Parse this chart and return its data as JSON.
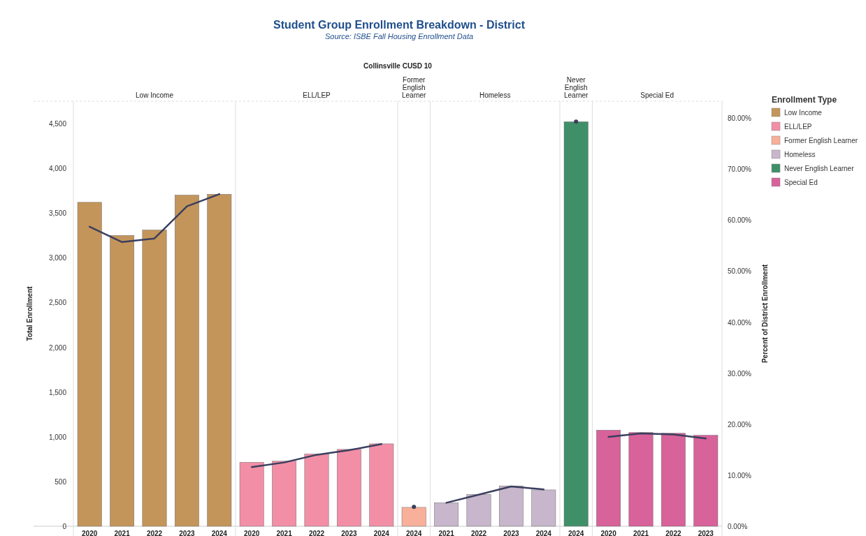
{
  "chart_data": {
    "type": "bar",
    "title": "Student Group Enrollment Breakdown - District",
    "subtitle": "Source: ISBE Fall Housing Enrollment Data",
    "annotations": [
      "Collinsville CUSD 10"
    ],
    "ylabel": "Total Enrollment",
    "y2label": "Percent of District Enrollment",
    "legend_title": "Enrollment Type",
    "legend": "right",
    "categories": [
      "2020",
      "2021",
      "2022",
      "2023",
      "2024",
      "2020",
      "2021",
      "2022",
      "2023",
      "2024",
      "2024",
      "2021",
      "2022",
      "2023",
      "2024",
      "2024",
      "2020",
      "2021",
      "2022",
      "2023"
    ],
    "ylim": [
      0,
      4750
    ],
    "yticks": [
      {
        "value": 0,
        "label": "0"
      },
      {
        "value": 500,
        "label": "500"
      },
      {
        "value": 1000,
        "label": "1,000"
      },
      {
        "value": 1500,
        "label": "1,500"
      },
      {
        "value": 2000,
        "label": "2,000"
      },
      {
        "value": 2500,
        "label": "2,500"
      },
      {
        "value": 3000,
        "label": "3,000"
      },
      {
        "value": 3500,
        "label": "3,500"
      },
      {
        "value": 4000,
        "label": "4,000"
      },
      {
        "value": 4500,
        "label": "4,500"
      }
    ],
    "y2lim": [
      0,
      83.3
    ],
    "y2ticks": [
      {
        "value": 0,
        "label": "0.00%"
      },
      {
        "value": 10,
        "label": "10.00%"
      },
      {
        "value": 20,
        "label": "20.00%"
      },
      {
        "value": 30,
        "label": "30.00%"
      },
      {
        "value": 40,
        "label": "40.00%"
      },
      {
        "value": 50,
        "label": "50.00%"
      },
      {
        "value": 60,
        "label": "60.00%"
      },
      {
        "value": 70,
        "label": "70.00%"
      },
      {
        "value": 80,
        "label": "80.00%"
      }
    ],
    "series": [
      {
        "name": "Low Income",
        "color": "#c4955a",
        "values": [
          3620,
          3250,
          3310,
          3700,
          3710,
          null,
          null,
          null,
          null,
          null,
          null,
          null,
          null,
          null,
          null,
          null,
          null,
          null,
          null,
          null
        ]
      },
      {
        "name": "ELL/LEP",
        "color": "#f28fa6",
        "values": [
          null,
          null,
          null,
          null,
          null,
          714,
          727,
          807,
          859,
          921,
          null,
          null,
          null,
          null,
          null,
          null,
          null,
          null,
          null,
          null
        ]
      },
      {
        "name": "Former English Learner",
        "color": "#f9b09a",
        "values": [
          null,
          null,
          null,
          null,
          null,
          null,
          null,
          null,
          null,
          null,
          211,
          null,
          null,
          null,
          null,
          null,
          null,
          null,
          null,
          null
        ]
      },
      {
        "name": "Homeless",
        "color": "#c8b6cc",
        "values": [
          null,
          null,
          null,
          null,
          null,
          null,
          null,
          null,
          null,
          null,
          null,
          262,
          355,
          451,
          406,
          null,
          null,
          null,
          null,
          null
        ]
      },
      {
        "name": "Never English Learner",
        "color": "#3f9068",
        "values": [
          null,
          null,
          null,
          null,
          null,
          null,
          null,
          null,
          null,
          null,
          null,
          null,
          null,
          null,
          null,
          4520,
          null,
          null,
          null,
          null
        ]
      },
      {
        "name": "Special Ed",
        "color": "#d8629a",
        "values": [
          null,
          null,
          null,
          null,
          null,
          null,
          null,
          null,
          null,
          null,
          null,
          null,
          null,
          null,
          null,
          null,
          1074,
          1047,
          1039,
          1016
        ]
      },
      {
        "type": "line",
        "axis": "y2",
        "color": "#3b3f5e",
        "line_style": "solid",
        "values": [
          58.7,
          55.7,
          56.4,
          62.7,
          65.1,
          11.6,
          12.5,
          14.0,
          14.9,
          16.1,
          null,
          4.6,
          6.2,
          7.8,
          7.2,
          null,
          17.5,
          18.2,
          18.0,
          17.2
        ]
      },
      {
        "type": "scatter",
        "axis": "y2",
        "color": "#3b3f5e",
        "marker": "circle",
        "values": [
          null,
          null,
          null,
          null,
          null,
          null,
          null,
          null,
          null,
          null,
          3.8,
          null,
          null,
          null,
          null,
          79.3,
          null,
          null,
          null,
          null
        ]
      }
    ]
  }
}
